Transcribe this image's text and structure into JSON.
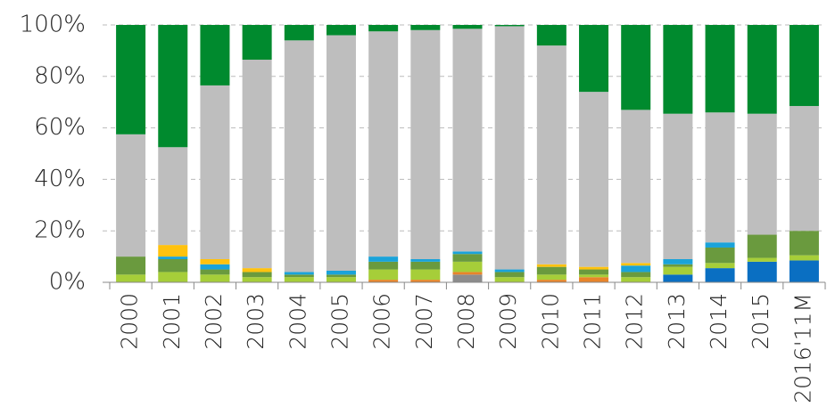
{
  "chart_data": {
    "type": "stacked_bar",
    "categories": [
      "2000",
      "2001",
      "2002",
      "2003",
      "2004",
      "2005",
      "2006",
      "2007",
      "2008",
      "2009",
      "2010",
      "2011",
      "2012",
      "2013",
      "2014",
      "2015",
      "2016'11M"
    ],
    "series": [
      {
        "color": "#0a6fc2",
        "values": [
          0,
          0,
          0,
          0,
          0,
          0,
          0,
          0,
          0,
          0,
          0,
          0,
          0,
          3,
          5.5,
          8,
          8.5
        ]
      },
      {
        "color": "#8c8c8c",
        "values": [
          0,
          0,
          0,
          0,
          0,
          0,
          0,
          0,
          3,
          0,
          0,
          0,
          0,
          0,
          0,
          0,
          0
        ]
      },
      {
        "color": "#e8842a",
        "values": [
          0,
          0,
          0,
          0,
          0,
          0,
          1,
          1,
          1,
          0,
          1,
          2,
          0,
          0,
          0,
          0,
          0
        ]
      },
      {
        "color": "#a6ce39",
        "values": [
          3,
          4,
          3,
          2,
          2,
          2,
          4,
          4,
          4,
          2,
          2,
          1,
          2,
          3,
          2,
          1.5,
          2
        ]
      },
      {
        "color": "#6a9a3e",
        "values": [
          7,
          5,
          2,
          2,
          1,
          1,
          3,
          3,
          3,
          2,
          3,
          2,
          2,
          1,
          6,
          9,
          9.5
        ]
      },
      {
        "color": "#1aa3d9",
        "values": [
          0,
          1,
          2,
          0,
          1,
          1.5,
          2,
          1,
          1,
          1,
          0,
          0,
          2.5,
          2,
          2,
          0,
          0
        ]
      },
      {
        "color": "#ffc20e",
        "values": [
          0,
          4.5,
          2,
          1.5,
          0,
          0,
          0,
          0,
          0,
          0,
          1,
          1,
          1,
          0,
          0,
          0,
          0
        ]
      },
      {
        "color": "#bebebe",
        "values": [
          47.5,
          38,
          67.5,
          81,
          90,
          91.5,
          87.5,
          89,
          86.5,
          94.5,
          85,
          68,
          59.5,
          56.5,
          50.5,
          47,
          48.5
        ]
      },
      {
        "color": "#008a2e",
        "values": [
          42.5,
          47.5,
          23.5,
          13.5,
          6,
          4,
          2.5,
          2,
          1.5,
          0.5,
          8,
          26,
          33,
          34.5,
          34,
          34.5,
          31.5
        ]
      }
    ],
    "ylim": [
      0,
      100
    ],
    "yticks": [
      {
        "value": 0,
        "label": "0%"
      },
      {
        "value": 20,
        "label": "20%"
      },
      {
        "value": 40,
        "label": "40%"
      },
      {
        "value": 60,
        "label": "60%"
      },
      {
        "value": 80,
        "label": "80%"
      },
      {
        "value": 100,
        "label": "100%"
      }
    ],
    "grid": true
  }
}
